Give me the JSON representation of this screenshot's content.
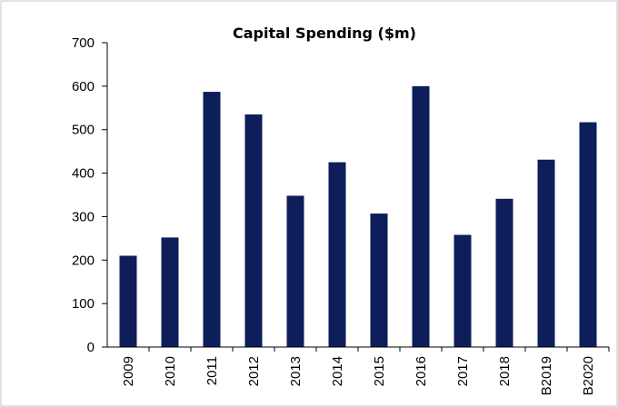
{
  "chart_data": {
    "type": "bar",
    "title": "Capital Spending ($m)",
    "xlabel": "",
    "ylabel": "",
    "categories": [
      "2009",
      "2010",
      "2011",
      "2012",
      "2013",
      "2014",
      "2015",
      "2016",
      "2017",
      "2018",
      "B2019",
      "B2020"
    ],
    "values": [
      210,
      252,
      587,
      535,
      348,
      425,
      307,
      600,
      258,
      341,
      431,
      517
    ],
    "ylim": [
      0,
      700
    ],
    "yticks": [
      0,
      100,
      200,
      300,
      400,
      500,
      600,
      700
    ],
    "grid": false,
    "legend": "none",
    "bar_color": "#0d1e5a",
    "frame_color": "#bfc6d6"
  }
}
